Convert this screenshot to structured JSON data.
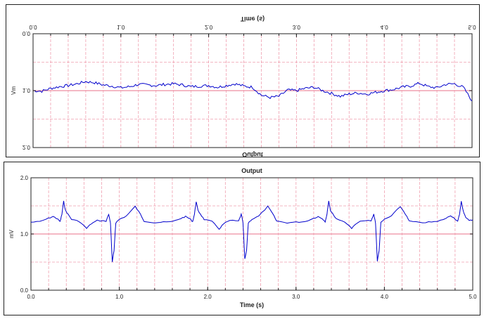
{
  "chart_data": [
    {
      "type": "line",
      "orientation": "flipped vertically",
      "title": "Output",
      "xlabel": "Time (s)",
      "ylabel": "mV",
      "xlim": [
        0,
        5
      ],
      "ylim": [
        0,
        2
      ],
      "xticks": [
        "0.0",
        "1.0",
        "2.0",
        "3.0",
        "4.0",
        "5.0"
      ],
      "yticks": [
        "0.0",
        "1.0",
        "2.0"
      ],
      "grid": true,
      "line_color": "#0000cc",
      "grid_color": "#f0a0b0",
      "series": [
        {
          "x": [
            0.0,
            0.1,
            0.2,
            0.3,
            0.4,
            0.5,
            0.6,
            0.7,
            0.8,
            0.9,
            1.0,
            1.1,
            1.2,
            1.3,
            1.4,
            1.5,
            1.6,
            1.7,
            1.8,
            1.9,
            2.0,
            2.1,
            2.2,
            2.3,
            2.4,
            2.5,
            2.6,
            2.7,
            2.8,
            2.9,
            3.0,
            3.1,
            3.2,
            3.3,
            3.4,
            3.5,
            3.6,
            3.7,
            3.8,
            3.9,
            4.0,
            4.1,
            4.2,
            4.3,
            4.4,
            4.5,
            4.6,
            4.7,
            4.8,
            4.9,
            5.0
          ],
          "y": [
            1.0,
            1.01,
            0.96,
            0.93,
            0.91,
            0.88,
            0.84,
            0.86,
            0.9,
            0.92,
            0.95,
            0.93,
            0.89,
            0.9,
            0.91,
            0.89,
            0.88,
            0.9,
            0.93,
            0.92,
            0.91,
            0.94,
            0.91,
            0.88,
            0.92,
            0.94,
            1.08,
            1.12,
            1.1,
            0.99,
            1.0,
            0.96,
            0.94,
            1.0,
            1.05,
            1.1,
            1.06,
            1.04,
            1.06,
            1.03,
            1.0,
            0.98,
            0.94,
            0.92,
            0.87,
            0.93,
            0.95,
            0.89,
            0.88,
            0.94,
            1.18
          ]
        }
      ]
    },
    {
      "type": "line",
      "title": "Output",
      "xlabel": "Time (s)",
      "ylabel": "mV",
      "xlim": [
        0,
        5
      ],
      "ylim": [
        0,
        2
      ],
      "xticks": [
        "0.0",
        "1.0",
        "2.0",
        "3.0",
        "4.0",
        "5.0"
      ],
      "yticks": [
        "0.0",
        "1.0",
        "2.0"
      ],
      "grid": true,
      "line_color": "#0000cc",
      "grid_color": "#f0a0b0",
      "series": [
        {
          "x": [
            0.0,
            0.1,
            0.2,
            0.25,
            0.3,
            0.33,
            0.35,
            0.37,
            0.39,
            0.42,
            0.46,
            0.55,
            0.63,
            0.68,
            0.75,
            0.85,
            0.88,
            0.9,
            0.92,
            0.94,
            0.96,
            1.0,
            1.08,
            1.18,
            1.24,
            1.28,
            1.4,
            1.5,
            1.6,
            1.7,
            1.75,
            1.8,
            1.83,
            1.85,
            1.87,
            1.89,
            1.92,
            1.96,
            2.05,
            2.13,
            2.18,
            2.25,
            2.35,
            2.38,
            2.4,
            2.42,
            2.44,
            2.46,
            2.5,
            2.58,
            2.68,
            2.74,
            2.78,
            2.9,
            3.0,
            3.1,
            3.2,
            3.25,
            3.3,
            3.33,
            3.35,
            3.37,
            3.39,
            3.42,
            3.46,
            3.55,
            3.63,
            3.68,
            3.75,
            3.85,
            3.88,
            3.9,
            3.92,
            3.94,
            3.96,
            4.0,
            4.08,
            4.18,
            4.24,
            4.28,
            4.4,
            4.5,
            4.6,
            4.7,
            4.75,
            4.8,
            4.83,
            4.85,
            4.87,
            4.89,
            4.92,
            4.96,
            5.0
          ],
          "y": [
            1.21,
            1.22,
            1.28,
            1.31,
            1.27,
            1.22,
            1.35,
            1.58,
            1.42,
            1.35,
            1.26,
            1.22,
            1.1,
            1.18,
            1.24,
            1.23,
            1.35,
            1.2,
            0.5,
            0.7,
            1.2,
            1.26,
            1.32,
            1.49,
            1.35,
            1.23,
            1.2,
            1.21,
            1.22,
            1.28,
            1.31,
            1.27,
            1.22,
            1.35,
            1.58,
            1.42,
            1.35,
            1.26,
            1.22,
            1.09,
            1.18,
            1.24,
            1.23,
            1.35,
            1.2,
            0.55,
            0.7,
            1.2,
            1.26,
            1.32,
            1.49,
            1.35,
            1.23,
            1.2,
            1.21,
            1.22,
            1.28,
            1.31,
            1.27,
            1.22,
            1.35,
            1.59,
            1.42,
            1.35,
            1.26,
            1.22,
            1.1,
            1.18,
            1.24,
            1.23,
            1.35,
            1.2,
            0.52,
            0.7,
            1.2,
            1.26,
            1.32,
            1.49,
            1.35,
            1.23,
            1.2,
            1.21,
            1.22,
            1.28,
            1.33,
            1.27,
            1.22,
            1.35,
            1.58,
            1.42,
            1.3,
            1.24,
            1.25
          ]
        }
      ]
    }
  ]
}
